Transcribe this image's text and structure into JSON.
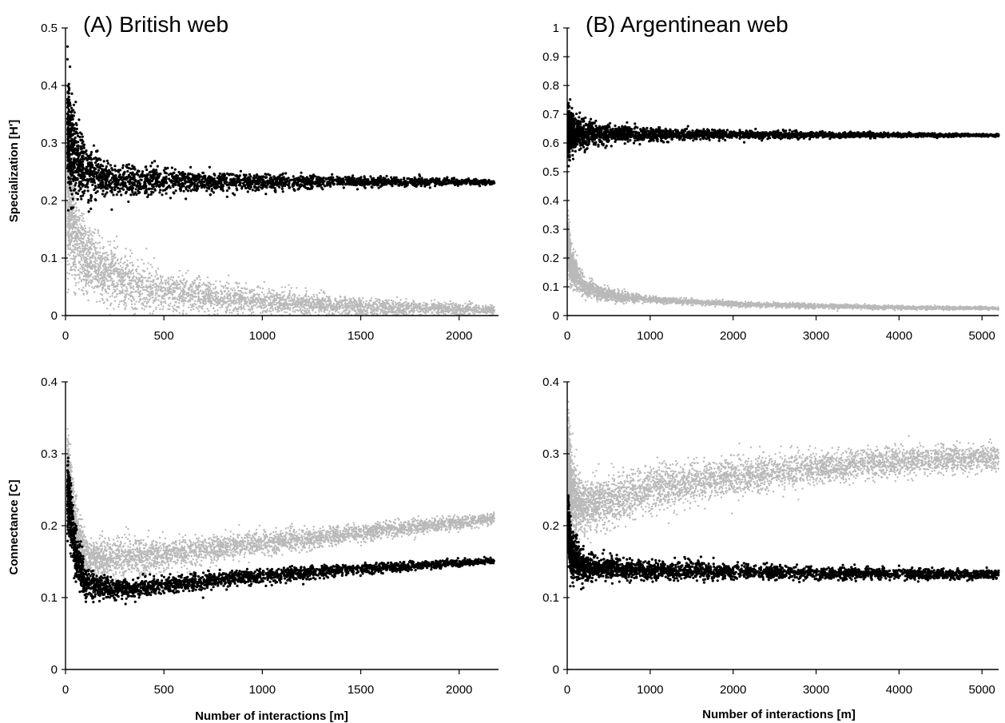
{
  "chart_data": [
    {
      "id": "A-top",
      "type": "scatter",
      "title": "(A) British web",
      "xlabel": "",
      "ylabel": "Specialization [H']",
      "xlim": [
        0,
        2200
      ],
      "ylim": [
        0,
        0.5
      ],
      "xticks": [
        0,
        500,
        1000,
        1500,
        2000
      ],
      "yticks": [
        0,
        0.1,
        0.2,
        0.3,
        0.4,
        0.5
      ],
      "xtick_labels": [
        "0",
        "500",
        "1000",
        "1500",
        "2000"
      ],
      "ytick_labels": [
        "0",
        "0.1",
        "0.2",
        "0.3",
        "0.4",
        "0.5"
      ],
      "grid": false,
      "series": [
        {
          "color": "#b9b9b9",
          "n": 4000,
          "x_range": [
            10,
            2180
          ],
          "mean_curve": [
            [
              10,
              0.22
            ],
            [
              50,
              0.14
            ],
            [
              100,
              0.1
            ],
            [
              250,
              0.065
            ],
            [
              500,
              0.04
            ],
            [
              1000,
              0.025
            ],
            [
              1500,
              0.015
            ],
            [
              2180,
              0.01
            ]
          ],
          "spread_curve": [
            [
              10,
              0.12
            ],
            [
              100,
              0.06
            ],
            [
              500,
              0.035
            ],
            [
              1000,
              0.02
            ],
            [
              2180,
              0.008
            ]
          ]
        },
        {
          "color": "#000000",
          "n": 2600,
          "x_range": [
            10,
            2180
          ],
          "mean_curve": [
            [
              10,
              0.32
            ],
            [
              50,
              0.27
            ],
            [
              100,
              0.25
            ],
            [
              250,
              0.235
            ],
            [
              500,
              0.233
            ],
            [
              1000,
              0.232
            ],
            [
              1500,
              0.232
            ],
            [
              2180,
              0.232
            ]
          ],
          "spread_curve": [
            [
              10,
              0.09
            ],
            [
              50,
              0.07
            ],
            [
              100,
              0.045
            ],
            [
              250,
              0.03
            ],
            [
              500,
              0.022
            ],
            [
              1000,
              0.014
            ],
            [
              1500,
              0.009
            ],
            [
              2180,
              0.004
            ]
          ]
        }
      ]
    },
    {
      "id": "B-top",
      "type": "scatter",
      "title": "(B) Argentinean web",
      "xlabel": "",
      "ylabel": "",
      "xlim": [
        0,
        5200
      ],
      "ylim": [
        0,
        1
      ],
      "xticks": [
        0,
        1000,
        2000,
        3000,
        4000,
        5000
      ],
      "yticks": [
        0,
        0.1,
        0.2,
        0.3,
        0.4,
        0.5,
        0.6,
        0.7,
        0.8,
        0.9,
        1
      ],
      "xtick_labels": [
        "0",
        "1000",
        "2000",
        "3000",
        "4000",
        "5000"
      ],
      "ytick_labels": [
        "0",
        "0.1",
        "0.2",
        "0.3",
        "0.4",
        "0.5",
        "0.6",
        "0.7",
        "0.8",
        "0.9",
        "1"
      ],
      "grid": false,
      "series": [
        {
          "color": "#b9b9b9",
          "n": 4000,
          "x_range": [
            10,
            5200
          ],
          "mean_curve": [
            [
              10,
              0.26
            ],
            [
              50,
              0.17
            ],
            [
              200,
              0.1
            ],
            [
              500,
              0.07
            ],
            [
              1000,
              0.055
            ],
            [
              2000,
              0.04
            ],
            [
              3000,
              0.033
            ],
            [
              4000,
              0.028
            ],
            [
              5200,
              0.025
            ]
          ],
          "spread_curve": [
            [
              10,
              0.08
            ],
            [
              200,
              0.03
            ],
            [
              1000,
              0.01
            ],
            [
              5200,
              0.005
            ]
          ]
        },
        {
          "color": "#000000",
          "n": 3000,
          "x_range": [
            10,
            5200
          ],
          "mean_curve": [
            [
              10,
              0.64
            ],
            [
              100,
              0.635
            ],
            [
              500,
              0.632
            ],
            [
              1000,
              0.63
            ],
            [
              3000,
              0.628
            ],
            [
              5200,
              0.627
            ]
          ],
          "spread_curve": [
            [
              10,
              0.09
            ],
            [
              100,
              0.055
            ],
            [
              500,
              0.03
            ],
            [
              1000,
              0.022
            ],
            [
              2000,
              0.014
            ],
            [
              3000,
              0.01
            ],
            [
              5200,
              0.004
            ]
          ]
        }
      ]
    },
    {
      "id": "A-bottom",
      "type": "scatter",
      "title": "",
      "xlabel": "Number of interactions [m]",
      "ylabel": "Connectance [C]",
      "xlim": [
        0,
        2200
      ],
      "ylim": [
        0,
        0.4
      ],
      "xticks": [
        0,
        500,
        1000,
        1500,
        2000
      ],
      "yticks": [
        0,
        0.1,
        0.2,
        0.3,
        0.4
      ],
      "xtick_labels": [
        "0",
        "500",
        "1000",
        "1500",
        "2000"
      ],
      "ytick_labels": [
        "0",
        "0.1",
        "0.2",
        "0.3",
        "0.4"
      ],
      "grid": false,
      "series": [
        {
          "color": "#b9b9b9",
          "n": 4200,
          "x_range": [
            10,
            2180
          ],
          "mean_curve": [
            [
              10,
              0.28
            ],
            [
              50,
              0.2
            ],
            [
              100,
              0.155
            ],
            [
              300,
              0.155
            ],
            [
              500,
              0.16
            ],
            [
              1000,
              0.175
            ],
            [
              1500,
              0.19
            ],
            [
              2180,
              0.21
            ]
          ],
          "spread_curve": [
            [
              10,
              0.05
            ],
            [
              100,
              0.03
            ],
            [
              500,
              0.022
            ],
            [
              1000,
              0.016
            ],
            [
              1500,
              0.012
            ],
            [
              2180,
              0.008
            ]
          ]
        },
        {
          "color": "#000000",
          "n": 2600,
          "x_range": [
            10,
            2180
          ],
          "mean_curve": [
            [
              10,
              0.25
            ],
            [
              50,
              0.16
            ],
            [
              100,
              0.12
            ],
            [
              300,
              0.11
            ],
            [
              500,
              0.118
            ],
            [
              1000,
              0.13
            ],
            [
              1500,
              0.14
            ],
            [
              2180,
              0.151
            ]
          ],
          "spread_curve": [
            [
              10,
              0.05
            ],
            [
              100,
              0.02
            ],
            [
              300,
              0.013
            ],
            [
              1000,
              0.01
            ],
            [
              2180,
              0.004
            ]
          ]
        }
      ]
    },
    {
      "id": "B-bottom",
      "type": "scatter",
      "title": "",
      "xlabel": "Number of interactions [m]",
      "ylabel": "",
      "xlim": [
        0,
        5200
      ],
      "ylim": [
        0,
        0.4
      ],
      "xticks": [
        0,
        1000,
        2000,
        3000,
        4000,
        5000
      ],
      "yticks": [
        0,
        0.1,
        0.2,
        0.3,
        0.4
      ],
      "xtick_labels": [
        "0",
        "1000",
        "2000",
        "3000",
        "4000",
        "5000"
      ],
      "ytick_labels": [
        "0",
        "0.1",
        "0.2",
        "0.3",
        "0.4"
      ],
      "grid": false,
      "series": [
        {
          "color": "#b9b9b9",
          "n": 4800,
          "x_range": [
            10,
            5200
          ],
          "mean_curve": [
            [
              10,
              0.3
            ],
            [
              50,
              0.24
            ],
            [
              200,
              0.225
            ],
            [
              500,
              0.235
            ],
            [
              1000,
              0.25
            ],
            [
              2000,
              0.268
            ],
            [
              3000,
              0.28
            ],
            [
              4000,
              0.29
            ],
            [
              5200,
              0.295
            ]
          ],
          "spread_curve": [
            [
              10,
              0.06
            ],
            [
              200,
              0.035
            ],
            [
              1000,
              0.03
            ],
            [
              3000,
              0.022
            ],
            [
              5200,
              0.018
            ]
          ]
        },
        {
          "color": "#000000",
          "n": 3000,
          "x_range": [
            10,
            5200
          ],
          "mean_curve": [
            [
              10,
              0.2
            ],
            [
              50,
              0.16
            ],
            [
              200,
              0.142
            ],
            [
              500,
              0.14
            ],
            [
              1000,
              0.138
            ],
            [
              3000,
              0.134
            ],
            [
              5200,
              0.132
            ]
          ],
          "spread_curve": [
            [
              10,
              0.04
            ],
            [
              200,
              0.018
            ],
            [
              1000,
              0.012
            ],
            [
              3000,
              0.009
            ],
            [
              5200,
              0.006
            ]
          ]
        }
      ]
    }
  ]
}
